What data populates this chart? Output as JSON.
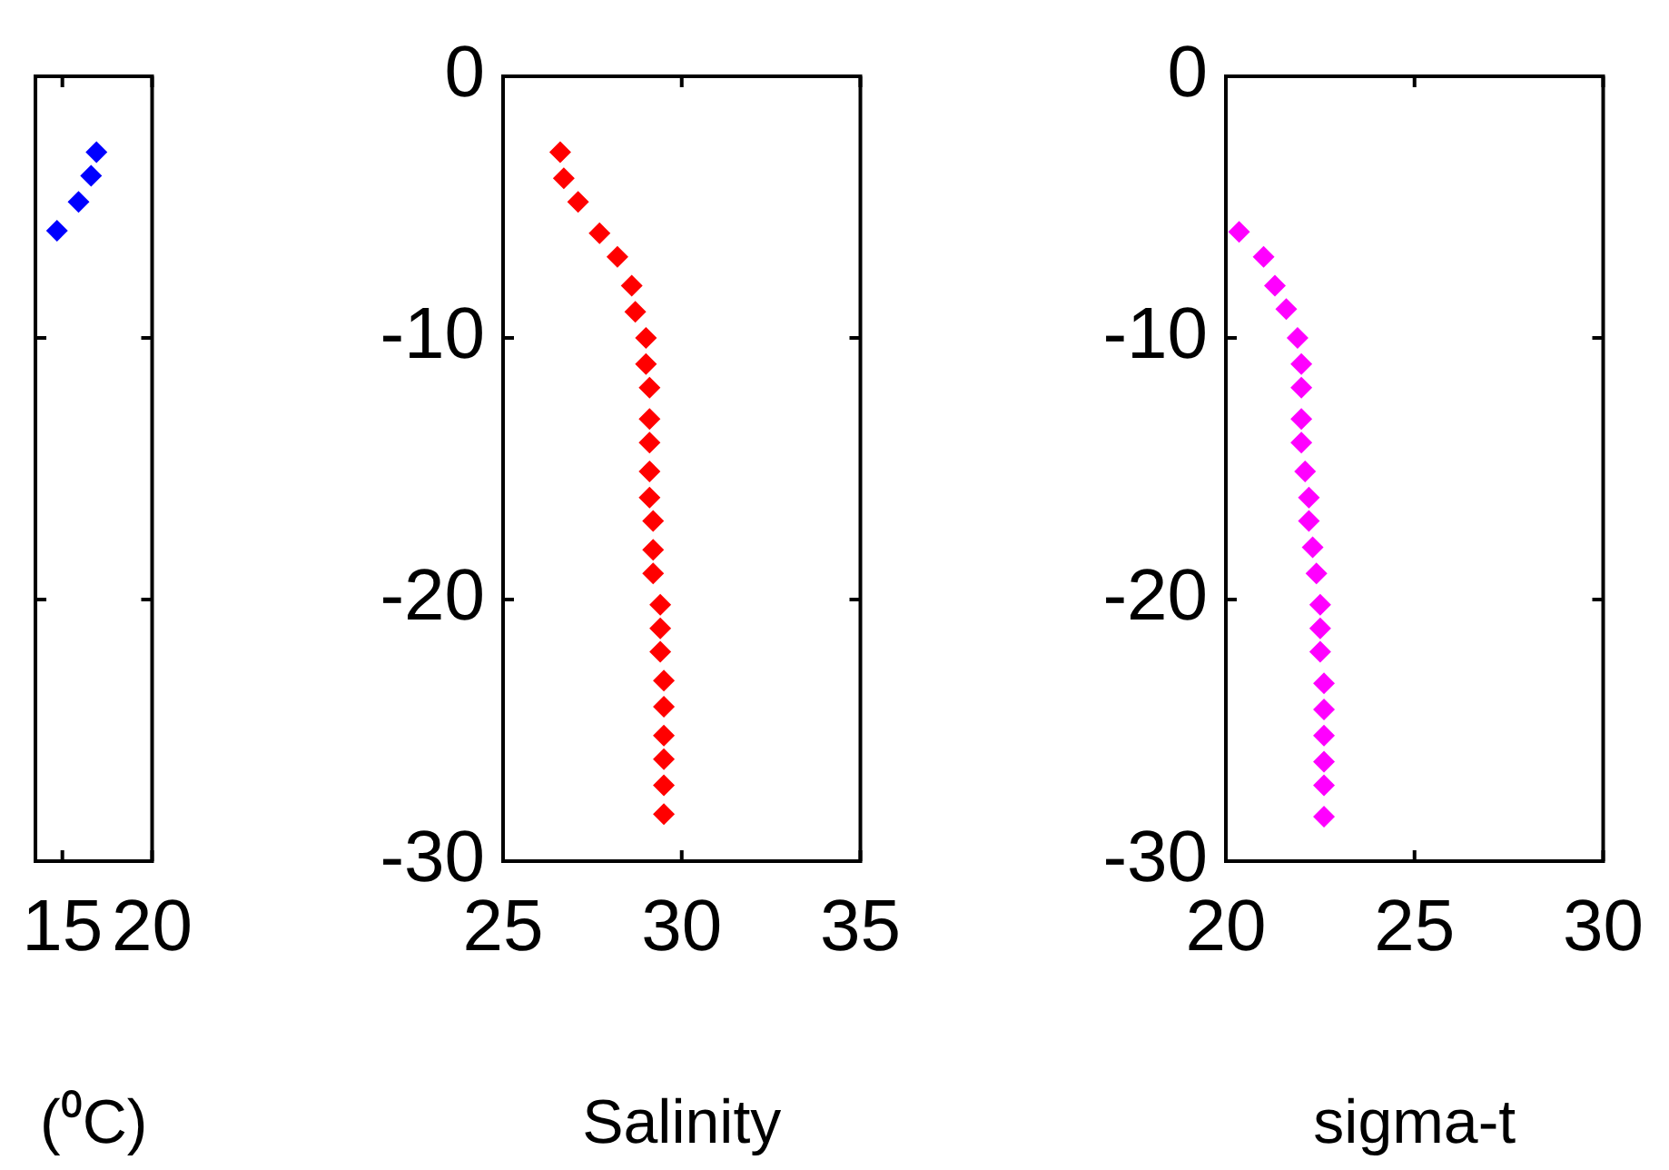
{
  "chart_data": [
    {
      "type": "scatter",
      "xlabel": "(⁰C)",
      "xlim": [
        13.5,
        20
      ],
      "xticks": [
        15,
        20
      ],
      "ylim": [
        -30,
        0
      ],
      "yticks": [
        -30,
        -20,
        -10,
        0
      ],
      "tick_labels": "x",
      "marker": "diamond",
      "series": [
        {
          "color": "#0000ff",
          "x": [
            14.7,
            15.9,
            16.6,
            16.9
          ],
          "values": [
            -5.9,
            -4.8,
            -3.8,
            -2.9
          ]
        }
      ]
    },
    {
      "type": "scatter",
      "xlabel": "Salinity",
      "xlim": [
        25,
        35
      ],
      "xticks": [
        25,
        30,
        35
      ],
      "ylim": [
        -30,
        0
      ],
      "yticks": [
        -30,
        -20,
        -10,
        0
      ],
      "marker": "diamond",
      "series": [
        {
          "color": "#ff0000",
          "x": [
            26.6,
            26.7,
            27.1,
            27.7,
            28.2,
            28.6,
            28.7,
            29.0,
            29.0,
            29.1,
            29.1,
            29.1,
            29.1,
            29.1,
            29.2,
            29.2,
            29.2,
            29.4,
            29.4,
            29.4,
            29.5,
            29.5,
            29.5,
            29.5,
            29.5,
            29.5
          ],
          "values": [
            -2.9,
            -3.9,
            -4.8,
            -6.0,
            -6.9,
            -8.0,
            -9.0,
            -10.0,
            -11.0,
            -11.9,
            -13.1,
            -14.0,
            -15.1,
            -16.1,
            -17.0,
            -18.1,
            -19.0,
            -20.2,
            -21.1,
            -22.0,
            -23.1,
            -24.1,
            -25.2,
            -26.1,
            -27.1,
            -28.2
          ]
        }
      ]
    },
    {
      "type": "scatter",
      "xlabel": "sigma-t",
      "xlim": [
        20,
        30
      ],
      "xticks": [
        20,
        25,
        30
      ],
      "ylim": [
        -30,
        0
      ],
      "yticks": [
        -30,
        -20,
        -10,
        0
      ],
      "marker": "diamond",
      "series": [
        {
          "color": "#ff00ff",
          "x": [
            20.35,
            21.0,
            21.3,
            21.6,
            21.9,
            22.0,
            22.0,
            22.0,
            22.0,
            22.1,
            22.2,
            22.2,
            22.3,
            22.4,
            22.5,
            22.5,
            22.5,
            22.6,
            22.6,
            22.6,
            22.6,
            22.6,
            22.6
          ],
          "values": [
            -5.95,
            -6.9,
            -8.0,
            -8.9,
            -10.0,
            -11.0,
            -11.9,
            -13.1,
            -14.0,
            -15.1,
            -16.1,
            -17.0,
            -18.0,
            -19.0,
            -20.2,
            -21.1,
            -22.0,
            -23.2,
            -24.2,
            -25.2,
            -26.2,
            -27.1,
            -28.3
          ]
        }
      ]
    }
  ]
}
